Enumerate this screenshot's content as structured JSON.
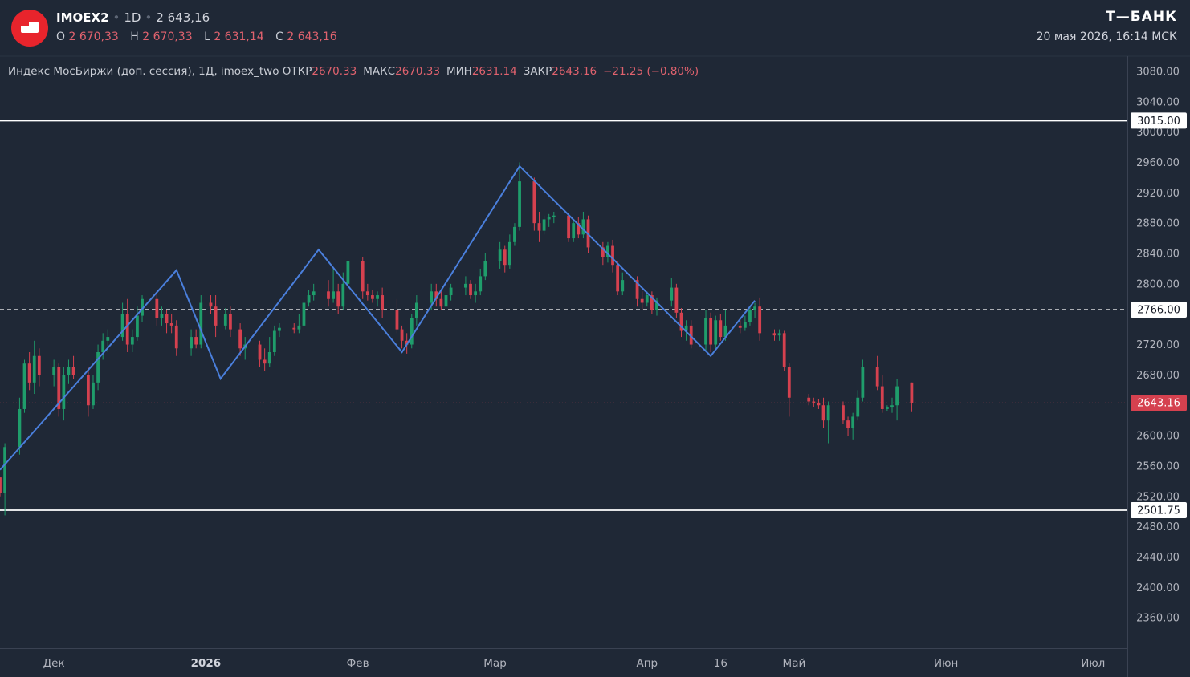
{
  "header": {
    "ticker": "IMOEX2",
    "timeframe": "1D",
    "last_price": "2 643,16",
    "ohlc": [
      {
        "label": "O",
        "value": "2 670,33"
      },
      {
        "label": "H",
        "value": "2 670,33"
      },
      {
        "label": "L",
        "value": "2 631,14"
      },
      {
        "label": "C",
        "value": "2 643,16"
      }
    ],
    "brand": "Т—БАНК",
    "datetime": "20 мая 2026, 16:14 МСК"
  },
  "legend": {
    "name": "Индекс МосБиржи (доп. сессия), 1Д, imoex_two",
    "open_label": "ОТКР",
    "open": "2670.33",
    "high_label": "МАКС",
    "high": "2670.33",
    "low_label": "МИН",
    "low": "2631.14",
    "close_label": "ЗАКР",
    "close": "2643.16",
    "change": "−21.25 (−0.80%)"
  },
  "colors": {
    "background": "#1f2836",
    "up": "#1f9d6b",
    "down": "#d5414f",
    "pattern": "#4a7fdc",
    "level": "#ffffff",
    "current_price_tag": "#d5414f"
  },
  "chart_data": {
    "type": "candlestick",
    "ylim": [
      2320,
      3100
    ],
    "y_ticks": [
      2360,
      2400,
      2440,
      2480,
      2520,
      2560,
      2600,
      2640,
      2680,
      2720,
      2760,
      2800,
      2840,
      2880,
      2920,
      2960,
      3000,
      3040,
      3080
    ],
    "y_tick_labels": [
      "2360.00",
      "2400.00",
      "2440.00",
      "2480.00",
      "2520.00",
      "2560.00",
      "2600.00",
      "2640.00",
      "2680.00",
      "2720.00",
      "2760.00",
      "2800.00",
      "2840.00",
      "2880.00",
      "2920.00",
      "2960.00",
      "3000.00",
      "3040.00",
      "3080.00"
    ],
    "x_labels": [
      {
        "label": "Дек",
        "date": "2025-12-01",
        "bold": false
      },
      {
        "label": "2026",
        "date": "2026-01-01",
        "bold": true
      },
      {
        "label": "Фев",
        "date": "2026-02-01",
        "bold": false
      },
      {
        "label": "Мар",
        "date": "2026-03-01",
        "bold": false
      },
      {
        "label": "Апр",
        "date": "2026-04-01",
        "bold": false
      },
      {
        "label": "16",
        "date": "2026-04-16",
        "bold": false
      },
      {
        "label": "Май",
        "date": "2026-05-01",
        "bold": false
      },
      {
        "label": "Июн",
        "date": "2026-06-01",
        "bold": false
      },
      {
        "label": "Июл",
        "date": "2026-07-01",
        "bold": false
      }
    ],
    "xlim": [
      "2025-11-20",
      "2026-07-08"
    ],
    "grid": false,
    "levels": [
      {
        "value": 3015.0,
        "label": "3015.00",
        "style": "solid"
      },
      {
        "value": 2766.0,
        "label": "2766.00",
        "style": "dashed"
      },
      {
        "value": 2501.75,
        "label": "2501.75",
        "style": "solid"
      }
    ],
    "current_price": {
      "value": 2643.16,
      "label": "2643.16"
    },
    "pattern_line": [
      {
        "date": "2025-11-20",
        "price": 2555
      },
      {
        "date": "2025-12-26",
        "price": 2818
      },
      {
        "date": "2026-01-04",
        "price": 2675
      },
      {
        "date": "2026-01-24",
        "price": 2845
      },
      {
        "date": "2026-02-10",
        "price": 2710
      },
      {
        "date": "2026-03-06",
        "price": 2955
      },
      {
        "date": "2026-04-14",
        "price": 2705
      },
      {
        "date": "2026-04-23",
        "price": 2778
      }
    ],
    "candles": [
      [
        "2025-11-20",
        2545,
        2545,
        2520,
        2525
      ],
      [
        "2025-11-21",
        2525,
        2590,
        2495,
        2585
      ],
      [
        "2025-11-24",
        2585,
        2650,
        2575,
        2635
      ],
      [
        "2025-11-25",
        2635,
        2700,
        2630,
        2695
      ],
      [
        "2025-11-26",
        2695,
        2710,
        2660,
        2670
      ],
      [
        "2025-11-27",
        2670,
        2725,
        2655,
        2705
      ],
      [
        "2025-11-28",
        2705,
        2715,
        2665,
        2680
      ],
      [
        "2025-12-01",
        2680,
        2700,
        2665,
        2690
      ],
      [
        "2025-12-02",
        2690,
        2695,
        2625,
        2635
      ],
      [
        "2025-12-03",
        2635,
        2690,
        2620,
        2680
      ],
      [
        "2025-12-04",
        2680,
        2700,
        2668,
        2690
      ],
      [
        "2025-12-05",
        2690,
        2705,
        2675,
        2680
      ],
      [
        "2025-12-08",
        2680,
        2690,
        2625,
        2640
      ],
      [
        "2025-12-09",
        2640,
        2680,
        2635,
        2670
      ],
      [
        "2025-12-10",
        2670,
        2720,
        2660,
        2710
      ],
      [
        "2025-12-11",
        2710,
        2735,
        2700,
        2725
      ],
      [
        "2025-12-12",
        2725,
        2740,
        2710,
        2730
      ],
      [
        "2025-12-15",
        2730,
        2775,
        2725,
        2760
      ],
      [
        "2025-12-16",
        2760,
        2780,
        2710,
        2720
      ],
      [
        "2025-12-17",
        2720,
        2740,
        2710,
        2730
      ],
      [
        "2025-12-18",
        2730,
        2770,
        2725,
        2758
      ],
      [
        "2025-12-19",
        2758,
        2785,
        2750,
        2780
      ],
      [
        "2025-12-22",
        2780,
        2790,
        2745,
        2755
      ],
      [
        "2025-12-23",
        2755,
        2770,
        2745,
        2760
      ],
      [
        "2025-12-24",
        2760,
        2765,
        2735,
        2748
      ],
      [
        "2025-12-25",
        2748,
        2760,
        2735,
        2745
      ],
      [
        "2025-12-26",
        2745,
        2752,
        2705,
        2715
      ],
      [
        "2025-12-29",
        2715,
        2740,
        2705,
        2730
      ],
      [
        "2025-12-30",
        2730,
        2740,
        2715,
        2720
      ],
      [
        "2025-12-31",
        2720,
        2785,
        2715,
        2775
      ],
      [
        "2026-01-02",
        2775,
        2785,
        2760,
        2770
      ],
      [
        "2026-01-03",
        2770,
        2785,
        2730,
        2745
      ],
      [
        "2026-01-05",
        2745,
        2768,
        2740,
        2760
      ],
      [
        "2026-01-06",
        2760,
        2770,
        2730,
        2740
      ],
      [
        "2026-01-08",
        2740,
        2748,
        2705,
        2715
      ],
      [
        "2026-01-09",
        2715,
        2730,
        2700,
        2720
      ],
      [
        "2026-01-12",
        2720,
        2725,
        2690,
        2700
      ],
      [
        "2026-01-13",
        2700,
        2715,
        2685,
        2695
      ],
      [
        "2026-01-14",
        2695,
        2730,
        2690,
        2710
      ],
      [
        "2026-01-15",
        2710,
        2745,
        2705,
        2738
      ],
      [
        "2026-01-16",
        2738,
        2748,
        2730,
        2742
      ],
      [
        "2026-01-19",
        2742,
        2748,
        2735,
        2740
      ],
      [
        "2026-01-20",
        2740,
        2760,
        2735,
        2745
      ],
      [
        "2026-01-21",
        2745,
        2782,
        2740,
        2775
      ],
      [
        "2026-01-22",
        2775,
        2792,
        2770,
        2785
      ],
      [
        "2026-01-23",
        2785,
        2800,
        2778,
        2790
      ],
      [
        "2026-01-26",
        2790,
        2805,
        2770,
        2780
      ],
      [
        "2026-01-27",
        2780,
        2820,
        2775,
        2790
      ],
      [
        "2026-01-28",
        2790,
        2800,
        2760,
        2770
      ],
      [
        "2026-01-29",
        2770,
        2815,
        2765,
        2800
      ],
      [
        "2026-01-30",
        2800,
        2825,
        2795,
        2830
      ],
      [
        "2026-02-02",
        2830,
        2835,
        2780,
        2790
      ],
      [
        "2026-02-03",
        2790,
        2800,
        2778,
        2785
      ],
      [
        "2026-02-04",
        2785,
        2792,
        2775,
        2780
      ],
      [
        "2026-02-05",
        2780,
        2790,
        2770,
        2785
      ],
      [
        "2026-02-06",
        2785,
        2795,
        2755,
        2765
      ],
      [
        "2026-02-09",
        2765,
        2780,
        2735,
        2740
      ],
      [
        "2026-02-10",
        2740,
        2745,
        2715,
        2725
      ],
      [
        "2026-02-11",
        2725,
        2735,
        2708,
        2720
      ],
      [
        "2026-02-12",
        2720,
        2760,
        2715,
        2755
      ],
      [
        "2026-02-13",
        2755,
        2785,
        2745,
        2775
      ],
      [
        "2026-02-16",
        2775,
        2800,
        2765,
        2790
      ],
      [
        "2026-02-17",
        2790,
        2800,
        2770,
        2780
      ],
      [
        "2026-02-18",
        2780,
        2790,
        2765,
        2770
      ],
      [
        "2026-02-19",
        2770,
        2790,
        2760,
        2785
      ],
      [
        "2026-02-20",
        2785,
        2800,
        2778,
        2795
      ],
      [
        "2026-02-23",
        2795,
        2810,
        2785,
        2800
      ],
      [
        "2026-02-24",
        2800,
        2805,
        2780,
        2785
      ],
      [
        "2026-02-25",
        2785,
        2800,
        2775,
        2790
      ],
      [
        "2026-02-26",
        2790,
        2820,
        2785,
        2810
      ],
      [
        "2026-02-27",
        2810,
        2840,
        2805,
        2830
      ],
      [
        "2026-03-02",
        2830,
        2855,
        2820,
        2845
      ],
      [
        "2026-03-03",
        2845,
        2850,
        2815,
        2825
      ],
      [
        "2026-03-04",
        2825,
        2865,
        2820,
        2855
      ],
      [
        "2026-03-05",
        2855,
        2880,
        2850,
        2875
      ],
      [
        "2026-03-06",
        2875,
        2960,
        2870,
        2935
      ],
      [
        "2026-03-09",
        2935,
        2940,
        2870,
        2880
      ],
      [
        "2026-03-10",
        2880,
        2895,
        2855,
        2870
      ],
      [
        "2026-03-11",
        2870,
        2890,
        2865,
        2885
      ],
      [
        "2026-03-12",
        2885,
        2892,
        2875,
        2888
      ],
      [
        "2026-03-13",
        2888,
        2895,
        2880,
        2890
      ],
      [
        "2026-03-16",
        2890,
        2892,
        2855,
        2860
      ],
      [
        "2026-03-17",
        2860,
        2885,
        2855,
        2880
      ],
      [
        "2026-03-18",
        2880,
        2888,
        2860,
        2865
      ],
      [
        "2026-03-19",
        2865,
        2895,
        2860,
        2885
      ],
      [
        "2026-03-20",
        2885,
        2890,
        2840,
        2848
      ],
      [
        "2026-03-23",
        2848,
        2855,
        2825,
        2835
      ],
      [
        "2026-03-24",
        2835,
        2855,
        2828,
        2850
      ],
      [
        "2026-03-25",
        2850,
        2858,
        2815,
        2825
      ],
      [
        "2026-03-26",
        2825,
        2830,
        2785,
        2790
      ],
      [
        "2026-03-27",
        2790,
        2815,
        2785,
        2805
      ],
      [
        "2026-03-30",
        2805,
        2810,
        2770,
        2780
      ],
      [
        "2026-03-31",
        2780,
        2790,
        2765,
        2775
      ],
      [
        "2026-04-01",
        2775,
        2790,
        2770,
        2785
      ],
      [
        "2026-04-02",
        2785,
        2790,
        2760,
        2765
      ],
      [
        "2026-04-03",
        2765,
        2782,
        2758,
        2778
      ],
      [
        "2026-04-06",
        2778,
        2808,
        2770,
        2795
      ],
      [
        "2026-04-07",
        2795,
        2800,
        2755,
        2762
      ],
      [
        "2026-04-08",
        2762,
        2768,
        2730,
        2738
      ],
      [
        "2026-04-09",
        2738,
        2752,
        2725,
        2745
      ],
      [
        "2026-04-10",
        2745,
        2752,
        2715,
        2720
      ],
      [
        "2026-04-13",
        2720,
        2765,
        2712,
        2755
      ],
      [
        "2026-04-14",
        2755,
        2762,
        2710,
        2720
      ],
      [
        "2026-04-15",
        2720,
        2758,
        2715,
        2752
      ],
      [
        "2026-04-16",
        2752,
        2760,
        2725,
        2730
      ],
      [
        "2026-04-17",
        2730,
        2765,
        2725,
        2745
      ],
      [
        "2026-04-20",
        2745,
        2752,
        2735,
        2742
      ],
      [
        "2026-04-21",
        2742,
        2758,
        2738,
        2750
      ],
      [
        "2026-04-22",
        2750,
        2770,
        2745,
        2765
      ],
      [
        "2026-04-23",
        2765,
        2775,
        2755,
        2770
      ],
      [
        "2026-04-24",
        2770,
        2782,
        2725,
        2735
      ],
      [
        "2026-04-27",
        2735,
        2740,
        2725,
        2732
      ],
      [
        "2026-04-28",
        2732,
        2740,
        2725,
        2735
      ],
      [
        "2026-04-29",
        2735,
        2738,
        2685,
        2690
      ],
      [
        "2026-04-30",
        2690,
        2695,
        2625,
        2650
      ],
      [
        "2026-05-04",
        2650,
        2655,
        2640,
        2645
      ],
      [
        "2026-05-05",
        2645,
        2650,
        2638,
        2643
      ],
      [
        "2026-05-06",
        2643,
        2648,
        2635,
        2640
      ],
      [
        "2026-05-07",
        2640,
        2650,
        2610,
        2620
      ],
      [
        "2026-05-08",
        2620,
        2645,
        2590,
        2640
      ],
      [
        "2026-05-11",
        2640,
        2645,
        2615,
        2620
      ],
      [
        "2026-05-12",
        2620,
        2625,
        2600,
        2610
      ],
      [
        "2026-05-13",
        2610,
        2630,
        2595,
        2625
      ],
      [
        "2026-05-14",
        2625,
        2660,
        2620,
        2650
      ],
      [
        "2026-05-15",
        2650,
        2700,
        2645,
        2690
      ],
      [
        "2026-05-18",
        2690,
        2705,
        2660,
        2665
      ],
      [
        "2026-05-19",
        2665,
        2680,
        2630,
        2635
      ],
      [
        "2026-05-20",
        2635,
        2640,
        2632,
        2637
      ],
      [
        "2026-05-21",
        2637,
        2650,
        2630,
        2640
      ],
      [
        "2026-05-22",
        2640,
        2675,
        2620,
        2665
      ],
      [
        "2026-05-25",
        2670,
        2670,
        2631,
        2643
      ]
    ]
  }
}
